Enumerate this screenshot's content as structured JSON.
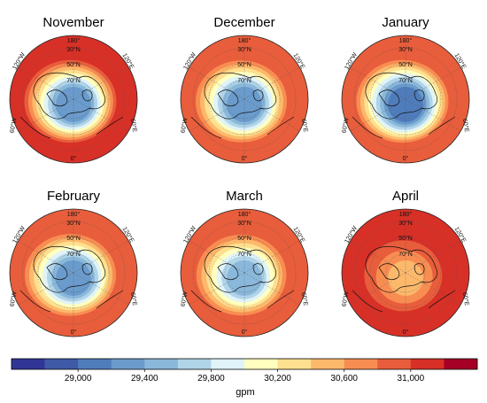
{
  "palette": [
    "#313695",
    "#3f5aa6",
    "#4f7cbb",
    "#6a9bcc",
    "#8ab8db",
    "#b0d4e8",
    "#e0f3f8",
    "#ffffbf",
    "#fee090",
    "#fdb96b",
    "#f88d52",
    "#e85d3b",
    "#d73027",
    "#a50026"
  ],
  "colorbar": {
    "ticks": [
      "29,000",
      "29,400",
      "29,800",
      "30,200",
      "30,600",
      "31,000"
    ],
    "unit": "gpm"
  },
  "map_labels": {
    "top": "180°",
    "bottom": "0°",
    "left": "120°W",
    "left_low": "60°W",
    "right": "120°E",
    "right_low": "60°E",
    "lat30": "30°N",
    "lat50": "50°N",
    "lat70": "70°N"
  },
  "maps": [
    {
      "title": "November",
      "outer_level": 12,
      "min_level": 3
    },
    {
      "title": "December",
      "outer_level": 11,
      "min_level": 3
    },
    {
      "title": "January",
      "outer_level": 11,
      "min_level": 2
    },
    {
      "title": "February",
      "outer_level": 11,
      "min_level": 3
    },
    {
      "title": "March",
      "outer_level": 11,
      "min_level": 4
    },
    {
      "title": "April",
      "outer_level": 12,
      "min_level": 9
    }
  ]
}
